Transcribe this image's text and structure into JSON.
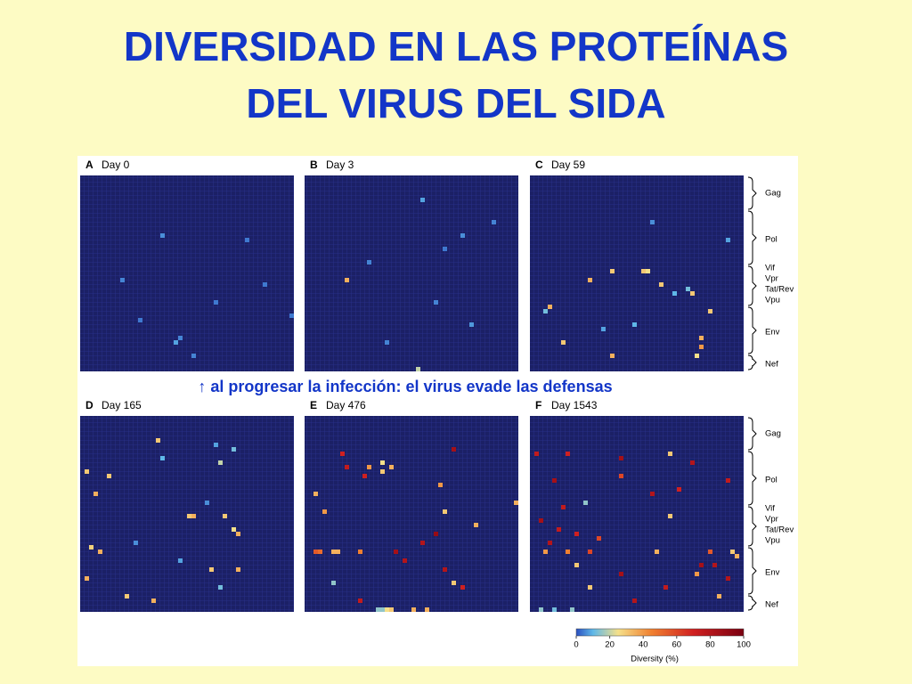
{
  "title_line1": "DIVERSIDAD EN LAS PROTEÍNAS",
  "title_line2": "DEL VIRUS DEL SIDA",
  "annotation": "↑ al progresar la infección: el virus evade las defensas",
  "genes": [
    "Gag",
    "Pol",
    "Vif",
    "Vpr",
    "Tat/Rev",
    "Vpu",
    "Env",
    "Nef"
  ],
  "panels": [
    {
      "letter": "A",
      "label": "Day 0",
      "cells": [
        [
          13,
          18,
          6
        ],
        [
          23,
          9,
          5
        ],
        [
          24,
          41,
          4
        ],
        [
          32,
          13,
          4
        ],
        [
          37,
          21,
          8
        ],
        [
          36,
          22,
          5
        ],
        [
          28,
          30,
          4
        ],
        [
          31,
          47,
          4
        ],
        [
          14,
          37,
          4
        ],
        [
          40,
          25,
          5
        ]
      ]
    },
    {
      "letter": "B",
      "label": "Day 3",
      "cells": [
        [
          5,
          26,
          8
        ],
        [
          23,
          9,
          35
        ],
        [
          13,
          35,
          6
        ],
        [
          28,
          29,
          5
        ],
        [
          33,
          37,
          7
        ],
        [
          19,
          14,
          5
        ],
        [
          10,
          42,
          5
        ],
        [
          37,
          18,
          5
        ],
        [
          43,
          25,
          20
        ],
        [
          16,
          31,
          4
        ]
      ]
    },
    {
      "letter": "C",
      "label": "Day 59",
      "cells": [
        [
          21,
          18,
          30
        ],
        [
          21,
          25,
          30
        ],
        [
          21,
          26,
          25
        ],
        [
          23,
          13,
          35
        ],
        [
          26,
          32,
          10
        ],
        [
          26,
          36,
          30
        ],
        [
          25,
          35,
          12
        ],
        [
          29,
          4,
          35
        ],
        [
          30,
          3,
          12
        ],
        [
          33,
          23,
          10
        ],
        [
          34,
          16,
          8
        ],
        [
          36,
          38,
          35
        ],
        [
          38,
          38,
          40
        ],
        [
          40,
          18,
          35
        ],
        [
          40,
          37,
          25
        ],
        [
          37,
          7,
          30
        ],
        [
          24,
          29,
          30
        ],
        [
          14,
          44,
          8
        ],
        [
          10,
          27,
          6
        ],
        [
          30,
          40,
          30
        ]
      ]
    },
    {
      "letter": "D",
      "label": "Day 165",
      "cells": [
        [
          5,
          17,
          30
        ],
        [
          6,
          30,
          8
        ],
        [
          7,
          34,
          12
        ],
        [
          9,
          18,
          10
        ],
        [
          10,
          31,
          20
        ],
        [
          13,
          6,
          30
        ],
        [
          17,
          3,
          35
        ],
        [
          22,
          25,
          35
        ],
        [
          22,
          24,
          30
        ],
        [
          22,
          32,
          30
        ],
        [
          25,
          34,
          25
        ],
        [
          26,
          35,
          35
        ],
        [
          29,
          2,
          28
        ],
        [
          30,
          4,
          35
        ],
        [
          34,
          35,
          35
        ],
        [
          34,
          29,
          30
        ],
        [
          36,
          1,
          35
        ],
        [
          38,
          31,
          12
        ],
        [
          40,
          10,
          30
        ],
        [
          41,
          16,
          35
        ],
        [
          12,
          1,
          30
        ],
        [
          19,
          28,
          6
        ],
        [
          32,
          22,
          8
        ],
        [
          28,
          12,
          6
        ]
      ]
    },
    {
      "letter": "E",
      "label": "Day 476",
      "cells": [
        [
          11,
          9,
          75
        ],
        [
          11,
          14,
          40
        ],
        [
          11,
          19,
          35
        ],
        [
          12,
          17,
          30
        ],
        [
          13,
          13,
          70
        ],
        [
          10,
          17,
          25
        ],
        [
          7,
          33,
          85
        ],
        [
          8,
          8,
          70
        ],
        [
          17,
          2,
          35
        ],
        [
          19,
          47,
          35
        ],
        [
          21,
          4,
          40
        ],
        [
          21,
          31,
          30
        ],
        [
          26,
          29,
          90
        ],
        [
          28,
          26,
          80
        ],
        [
          30,
          2,
          55
        ],
        [
          30,
          3,
          50
        ],
        [
          30,
          6,
          35
        ],
        [
          30,
          7,
          35
        ],
        [
          30,
          12,
          45
        ],
        [
          30,
          20,
          85
        ],
        [
          32,
          22,
          80
        ],
        [
          34,
          31,
          80
        ],
        [
          37,
          6,
          15
        ],
        [
          38,
          35,
          70
        ],
        [
          37,
          33,
          30
        ],
        [
          41,
          12,
          75
        ],
        [
          43,
          16,
          15
        ],
        [
          43,
          17,
          15
        ],
        [
          43,
          18,
          25
        ],
        [
          43,
          19,
          30
        ],
        [
          43,
          24,
          35
        ],
        [
          43,
          27,
          35
        ],
        [
          24,
          38,
          35
        ],
        [
          15,
          30,
          40
        ]
      ]
    },
    {
      "letter": "F",
      "label": "Day 1543",
      "cells": [
        [
          8,
          1,
          75
        ],
        [
          8,
          8,
          70
        ],
        [
          9,
          20,
          85
        ],
        [
          8,
          31,
          30
        ],
        [
          10,
          36,
          80
        ],
        [
          14,
          5,
          85
        ],
        [
          14,
          44,
          75
        ],
        [
          17,
          27,
          80
        ],
        [
          19,
          12,
          15
        ],
        [
          20,
          7,
          75
        ],
        [
          22,
          31,
          30
        ],
        [
          23,
          2,
          85
        ],
        [
          25,
          6,
          75
        ],
        [
          26,
          10,
          70
        ],
        [
          28,
          4,
          80
        ],
        [
          30,
          3,
          40
        ],
        [
          30,
          8,
          45
        ],
        [
          30,
          13,
          60
        ],
        [
          30,
          28,
          35
        ],
        [
          30,
          40,
          55
        ],
        [
          30,
          45,
          30
        ],
        [
          31,
          46,
          35
        ],
        [
          33,
          10,
          30
        ],
        [
          33,
          38,
          85
        ],
        [
          33,
          41,
          80
        ],
        [
          35,
          20,
          85
        ],
        [
          35,
          37,
          40
        ],
        [
          38,
          13,
          30
        ],
        [
          38,
          30,
          75
        ],
        [
          41,
          23,
          80
        ],
        [
          43,
          2,
          15
        ],
        [
          43,
          5,
          12
        ],
        [
          43,
          9,
          15
        ],
        [
          13,
          20,
          60
        ],
        [
          16,
          33,
          70
        ],
        [
          36,
          44,
          80
        ],
        [
          40,
          42,
          35
        ],
        [
          27,
          15,
          60
        ]
      ]
    }
  ],
  "colorbar": {
    "label": "Diversity (%)",
    "lim": [
      0,
      100
    ],
    "ticks": [
      0,
      20,
      40,
      60,
      80,
      100
    ]
  }
}
